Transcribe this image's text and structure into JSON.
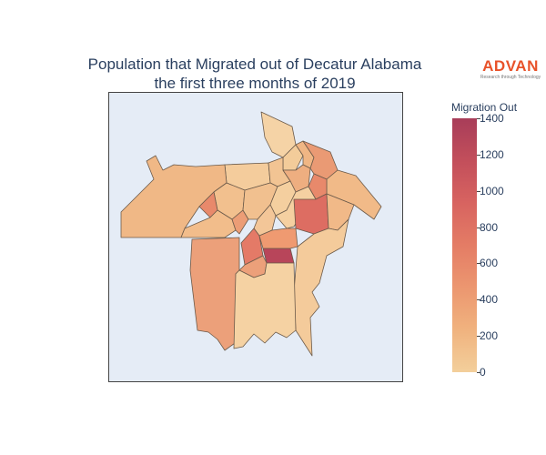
{
  "title": {
    "line1": "Population that Migrated out of Decatur Alabama",
    "line2": "the first three months of 2019"
  },
  "logo": {
    "word": "ADVAN",
    "tagline": "Research through Technology",
    "color": "#e8522a"
  },
  "map": {
    "background": "#e5ecf6",
    "border_color": "#444444",
    "region_stroke": "#6b5a4a"
  },
  "colorbar": {
    "title": "Migration Out",
    "min": 0,
    "max": 1400,
    "ticks": [
      "0",
      "200",
      "400",
      "600",
      "800",
      "1000",
      "1200",
      "1400"
    ],
    "colorscale": [
      "#f3cf9b",
      "#f0b27e",
      "#ec9770",
      "#e47c65",
      "#d76360",
      "#c34f5b",
      "#a83d59"
    ]
  }
}
